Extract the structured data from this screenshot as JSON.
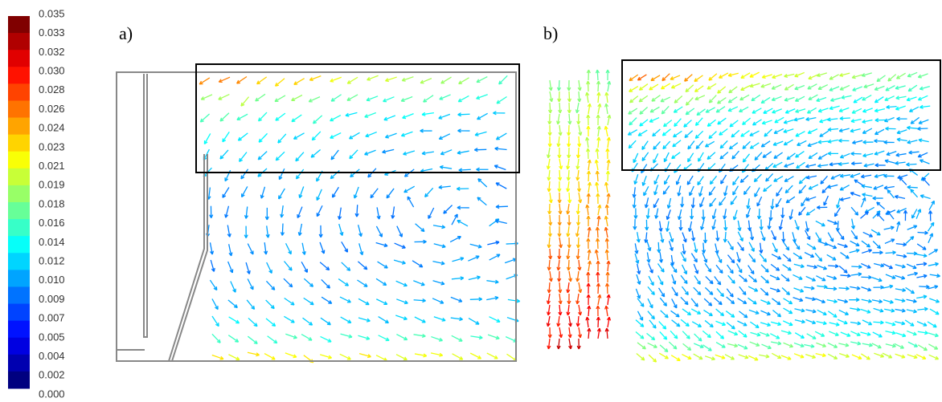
{
  "colorbar": {
    "ticks": [
      "0.035",
      "0.033",
      "0.032",
      "0.030",
      "0.028",
      "0.026",
      "0.024",
      "0.023",
      "0.021",
      "0.019",
      "0.018",
      "0.016",
      "0.014",
      "0.012",
      "0.010",
      "0.009",
      "0.007",
      "0.005",
      "0.004",
      "0.002",
      "0.000"
    ]
  },
  "panels": [
    {
      "label": "a)"
    },
    {
      "label": "b)"
    }
  ]
}
